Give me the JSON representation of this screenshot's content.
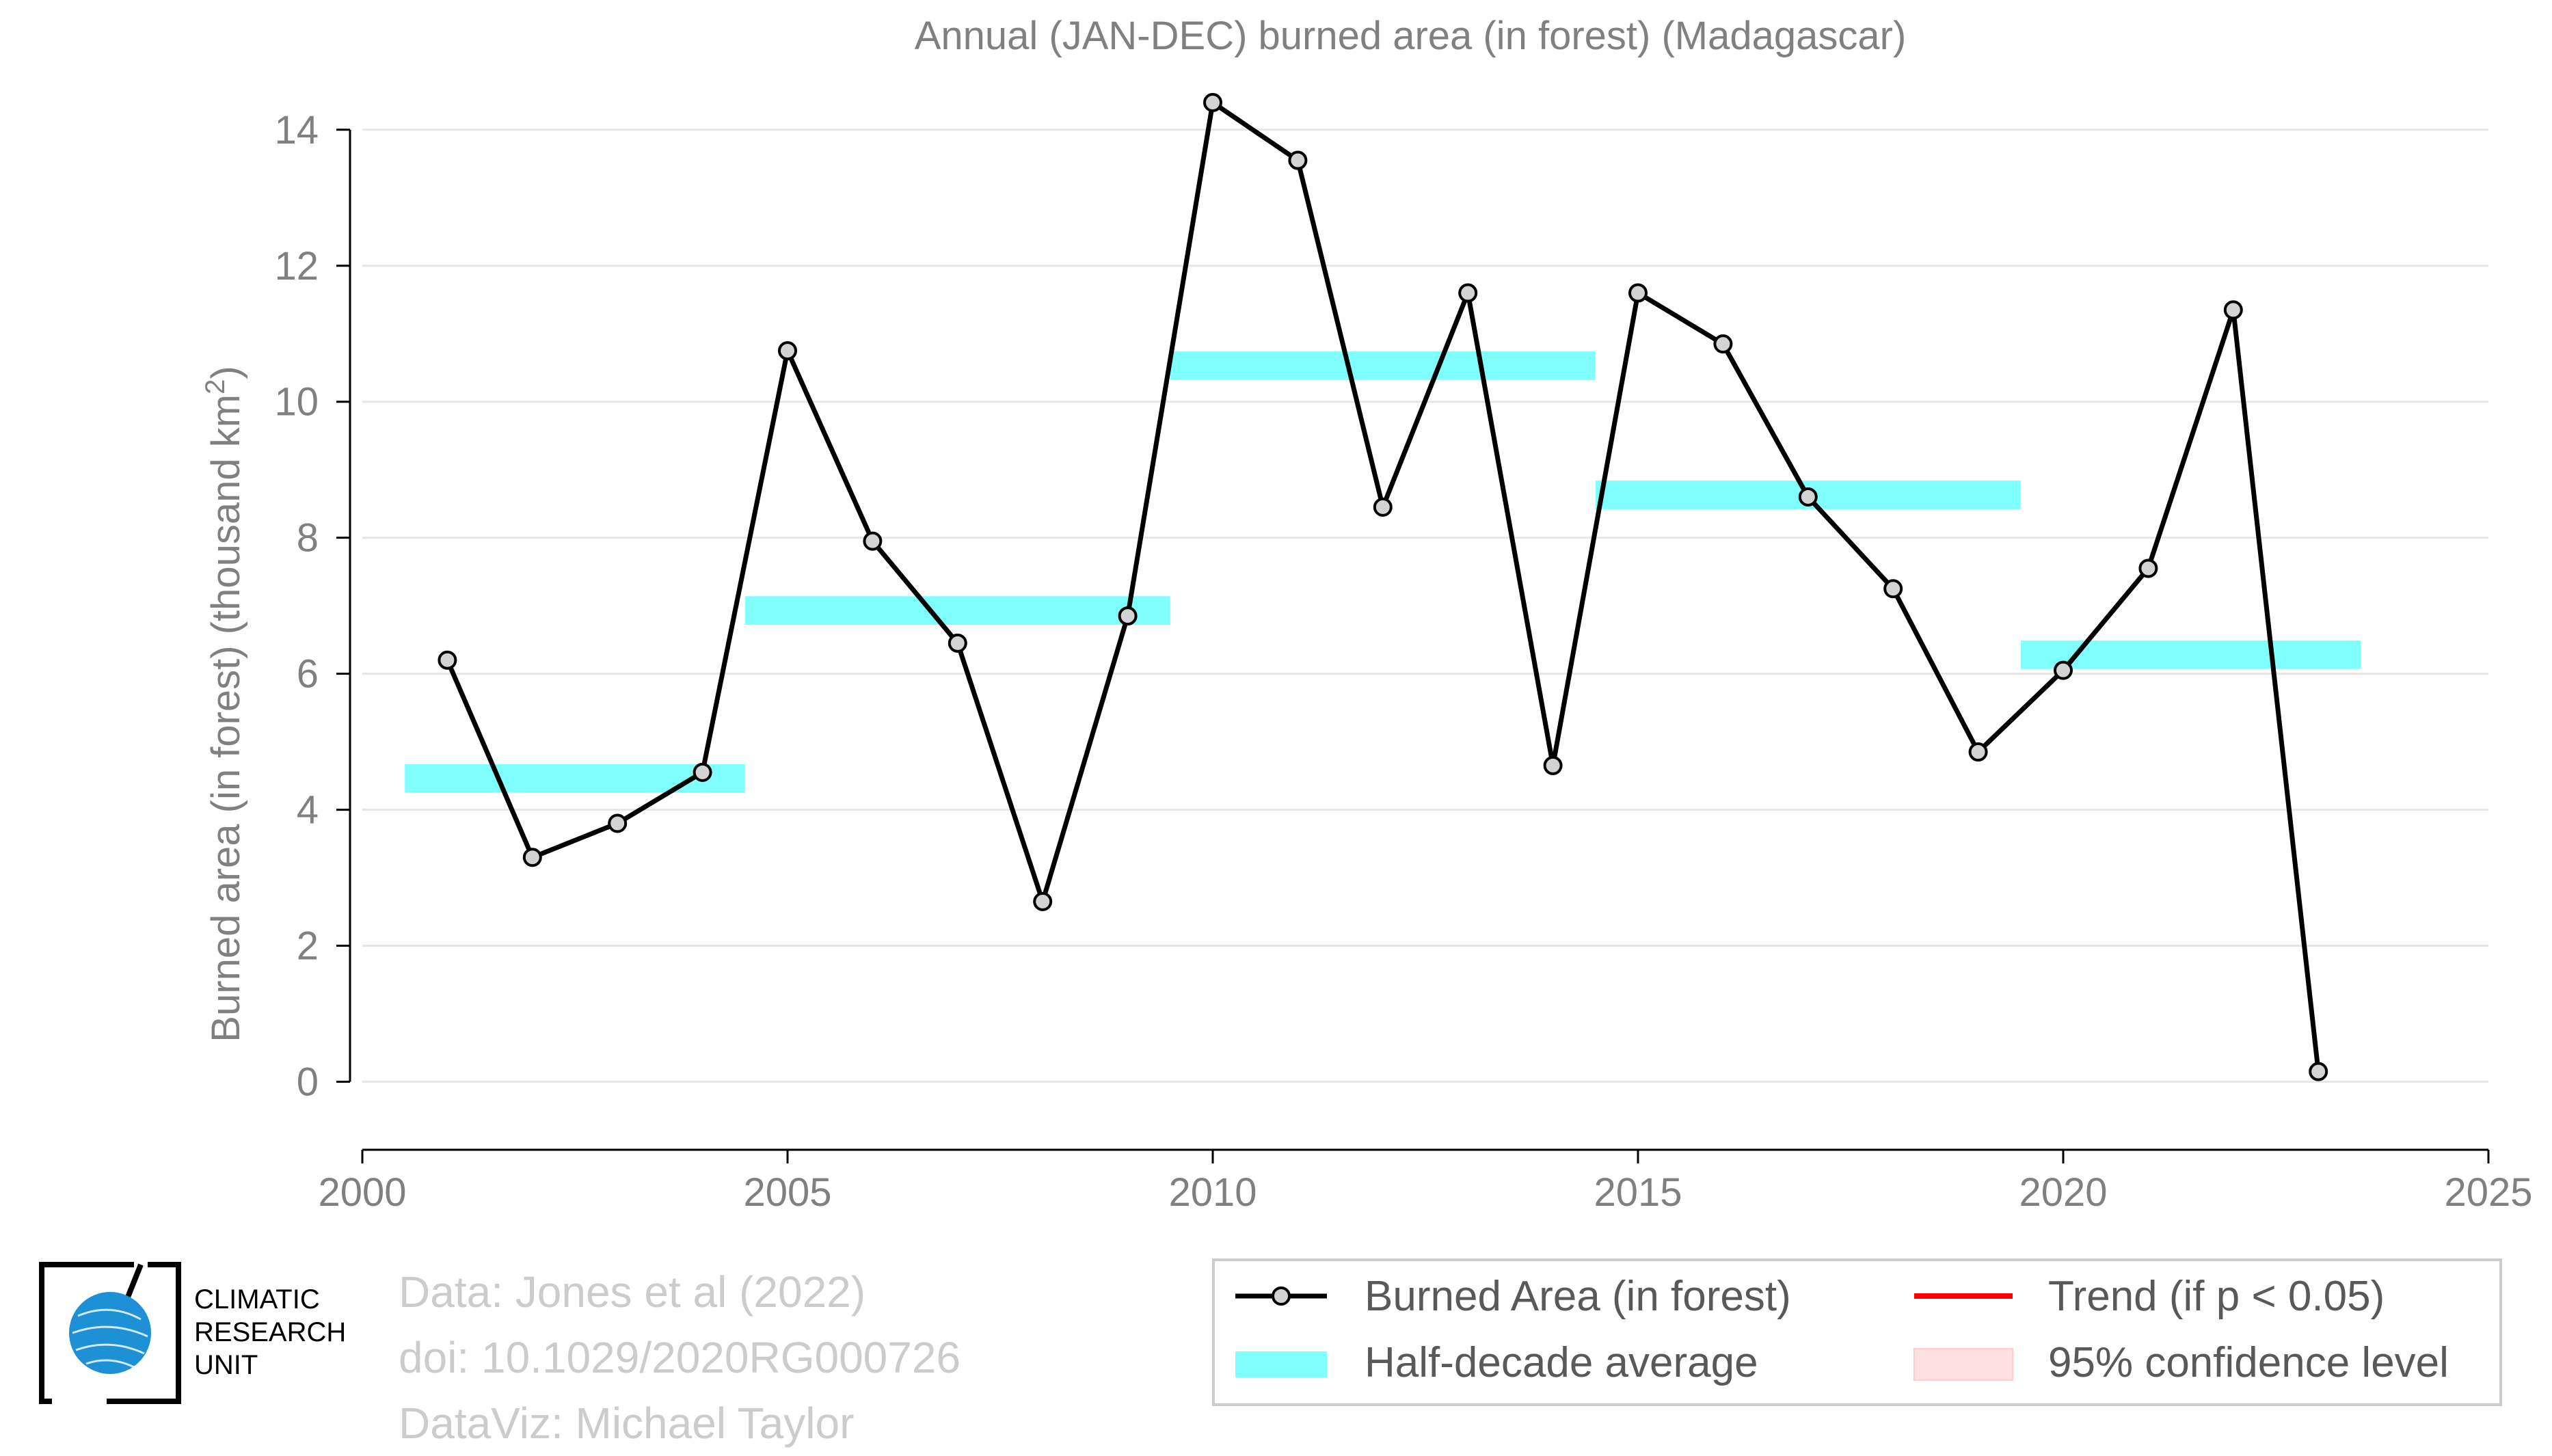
{
  "chart_data": {
    "type": "line",
    "title": "Annual (JAN-DEC) burned area (in forest) (Madagascar)",
    "ylabel": "Burned area (in forest) (thousand km",
    "ylabel_sup": "2",
    "ylabel_close": ")",
    "xlim": [
      2000,
      2025
    ],
    "ylim": [
      -1,
      14.4
    ],
    "xticks": [
      2000,
      2005,
      2010,
      2015,
      2020,
      2025
    ],
    "yticks": [
      0,
      2,
      4,
      6,
      8,
      10,
      12,
      14
    ],
    "grid": "horizontal",
    "series": [
      {
        "name": "Burned Area (in forest)",
        "color": "#000000",
        "marker_fill": "#d3d3d3",
        "x": [
          2001,
          2002,
          2003,
          2004,
          2005,
          2006,
          2007,
          2008,
          2009,
          2010,
          2011,
          2012,
          2013,
          2014,
          2015,
          2016,
          2017,
          2018,
          2019,
          2020,
          2021,
          2022,
          2023
        ],
        "y": [
          6.2,
          3.3,
          3.8,
          4.55,
          10.75,
          7.95,
          6.45,
          2.65,
          6.85,
          14.4,
          13.55,
          8.45,
          11.6,
          4.65,
          11.6,
          10.85,
          8.6,
          7.25,
          4.85,
          6.05,
          7.55,
          11.35,
          0.15
        ]
      }
    ],
    "half_decade_averages": {
      "name": "Half-decade average",
      "color": "#80ffff",
      "periods": [
        {
          "x0": 2000.5,
          "x1": 2004.5,
          "y": 4.46
        },
        {
          "x0": 2004.5,
          "x1": 2009.5,
          "y": 6.93
        },
        {
          "x0": 2009.5,
          "x1": 2014.5,
          "y": 10.53
        },
        {
          "x0": 2014.5,
          "x1": 2019.5,
          "y": 8.63
        },
        {
          "x0": 2019.5,
          "x1": 2023.5,
          "y": 6.28
        }
      ]
    },
    "legend": {
      "position": "bottom-right",
      "entries": [
        {
          "label": "Burned Area (in forest)",
          "kind": "line-marker",
          "color": "#000000"
        },
        {
          "label": "Trend (if p < 0.05)",
          "kind": "line",
          "color": "#ff0000"
        },
        {
          "label": "Half-decade average",
          "kind": "band",
          "color": "#80ffff"
        },
        {
          "label": "95% confidence level",
          "kind": "band",
          "color": "#ffe0e0"
        }
      ]
    }
  },
  "credits": [
    "Data: Jones et al (2022)",
    "doi: 10.1029/2020RG000726",
    "DataViz: Michael Taylor"
  ],
  "logo": {
    "lines": [
      "CLIMATIC",
      "RESEARCH",
      "UNIT"
    ],
    "globe_color": "#1e90d6"
  }
}
